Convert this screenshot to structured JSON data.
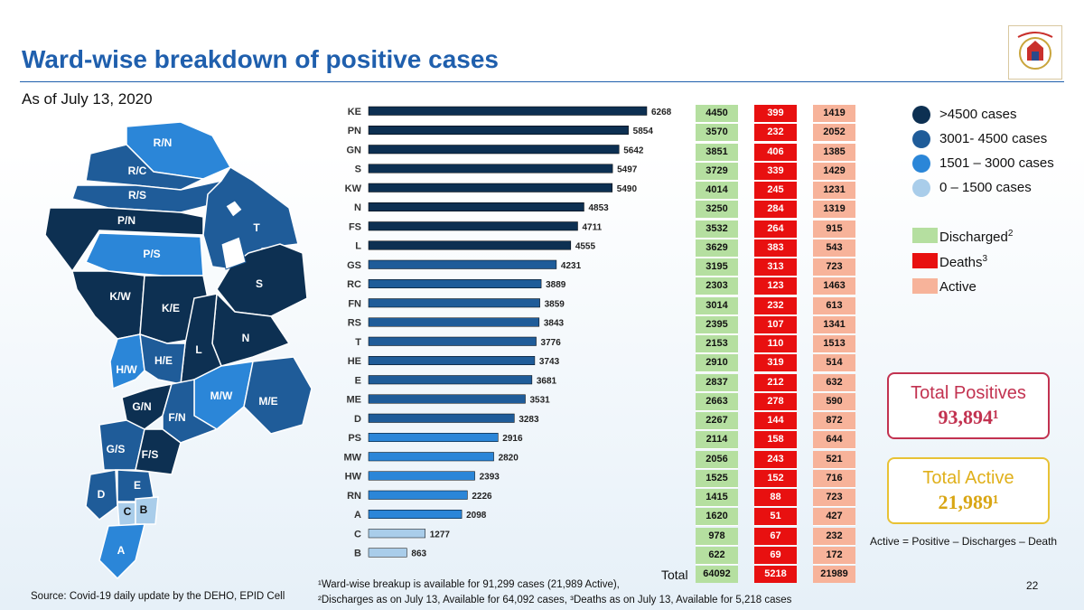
{
  "header": {
    "title": "Ward-wise breakdown of positive cases",
    "subtitle": "As of July 13, 2020"
  },
  "colors": {
    "dark": "#0d3052",
    "mid": "#1f5c99",
    "light": "#2b86d8",
    "lightest": "#a9cdea",
    "discharged": "#b5dfa0",
    "deaths": "#e81010",
    "active": "#f7b39a"
  },
  "map": {
    "wards": [
      "R/N",
      "R/C",
      "R/S",
      "P/N",
      "P/S",
      "T",
      "S",
      "K/W",
      "K/E",
      "N",
      "L",
      "H/W",
      "H/E",
      "M/W",
      "M/E",
      "G/N",
      "F/N",
      "G/S",
      "F/S",
      "D",
      "E",
      "C",
      "B",
      "A"
    ]
  },
  "legend": {
    "case_ranges": [
      {
        "label": ">4500 cases",
        "color": "#0d3052"
      },
      {
        "label": "3001- 4500 cases",
        "color": "#1f5c99"
      },
      {
        "label": "1501 – 3000 cases",
        "color": "#2b86d8"
      },
      {
        "label": "0 – 1500 cases",
        "color": "#a9cdea"
      }
    ],
    "columns": [
      {
        "label": "Discharged",
        "sup": "2",
        "color": "#b5dfa0"
      },
      {
        "label": "Deaths",
        "sup": "3",
        "color": "#e81010"
      },
      {
        "label": "Active",
        "sup": "",
        "color": "#f7b39a"
      }
    ]
  },
  "chart_data": {
    "type": "bar",
    "orientation": "horizontal",
    "title": "Ward-wise breakdown of positive cases",
    "categories": [
      "KE",
      "PN",
      "GN",
      "S",
      "KW",
      "N",
      "FS",
      "L",
      "GS",
      "RC",
      "FN",
      "RS",
      "T",
      "HE",
      "E",
      "ME",
      "D",
      "PS",
      "MW",
      "HW",
      "RN",
      "A",
      "C",
      "B"
    ],
    "values": [
      6268,
      5854,
      5642,
      5497,
      5490,
      4853,
      4711,
      4555,
      4231,
      3889,
      3859,
      3843,
      3776,
      3743,
      3681,
      3531,
      3283,
      2916,
      2820,
      2393,
      2226,
      2098,
      1277,
      863
    ],
    "xlim": [
      0,
      6268
    ],
    "table": {
      "discharged": [
        4450,
        3570,
        3851,
        3729,
        4014,
        3250,
        3532,
        3629,
        3195,
        2303,
        3014,
        2395,
        2153,
        2910,
        2837,
        2663,
        2267,
        2114,
        2056,
        1525,
        1415,
        1620,
        978,
        622
      ],
      "deaths": [
        399,
        232,
        406,
        339,
        245,
        284,
        264,
        383,
        313,
        123,
        232,
        107,
        110,
        319,
        212,
        278,
        144,
        158,
        243,
        152,
        88,
        51,
        67,
        69
      ],
      "active": [
        1419,
        2052,
        1385,
        1429,
        1231,
        1319,
        915,
        543,
        723,
        1463,
        613,
        1341,
        1513,
        514,
        632,
        590,
        872,
        644,
        521,
        716,
        723,
        427,
        232,
        172
      ]
    },
    "totals": {
      "label": "Total",
      "discharged": "64092",
      "deaths": "5218",
      "active": "21989"
    }
  },
  "summary": {
    "total_positives_label": "Total Positives",
    "total_positives_value": "93,894¹",
    "total_active_label": "Total Active",
    "total_active_value": "21,989¹",
    "formula": "Active = Positive – Discharges – Death"
  },
  "footer": {
    "source": "Source: Covid-19 daily update by the DEHO, EPID Cell",
    "note1": "¹Ward-wise breakup is available for 91,299 cases (21,989 Active),",
    "note2": "²Discharges as on July 13, Available for 64,092 cases, ³Deaths as on July 13, Available for 5,218 cases",
    "page": "22"
  }
}
